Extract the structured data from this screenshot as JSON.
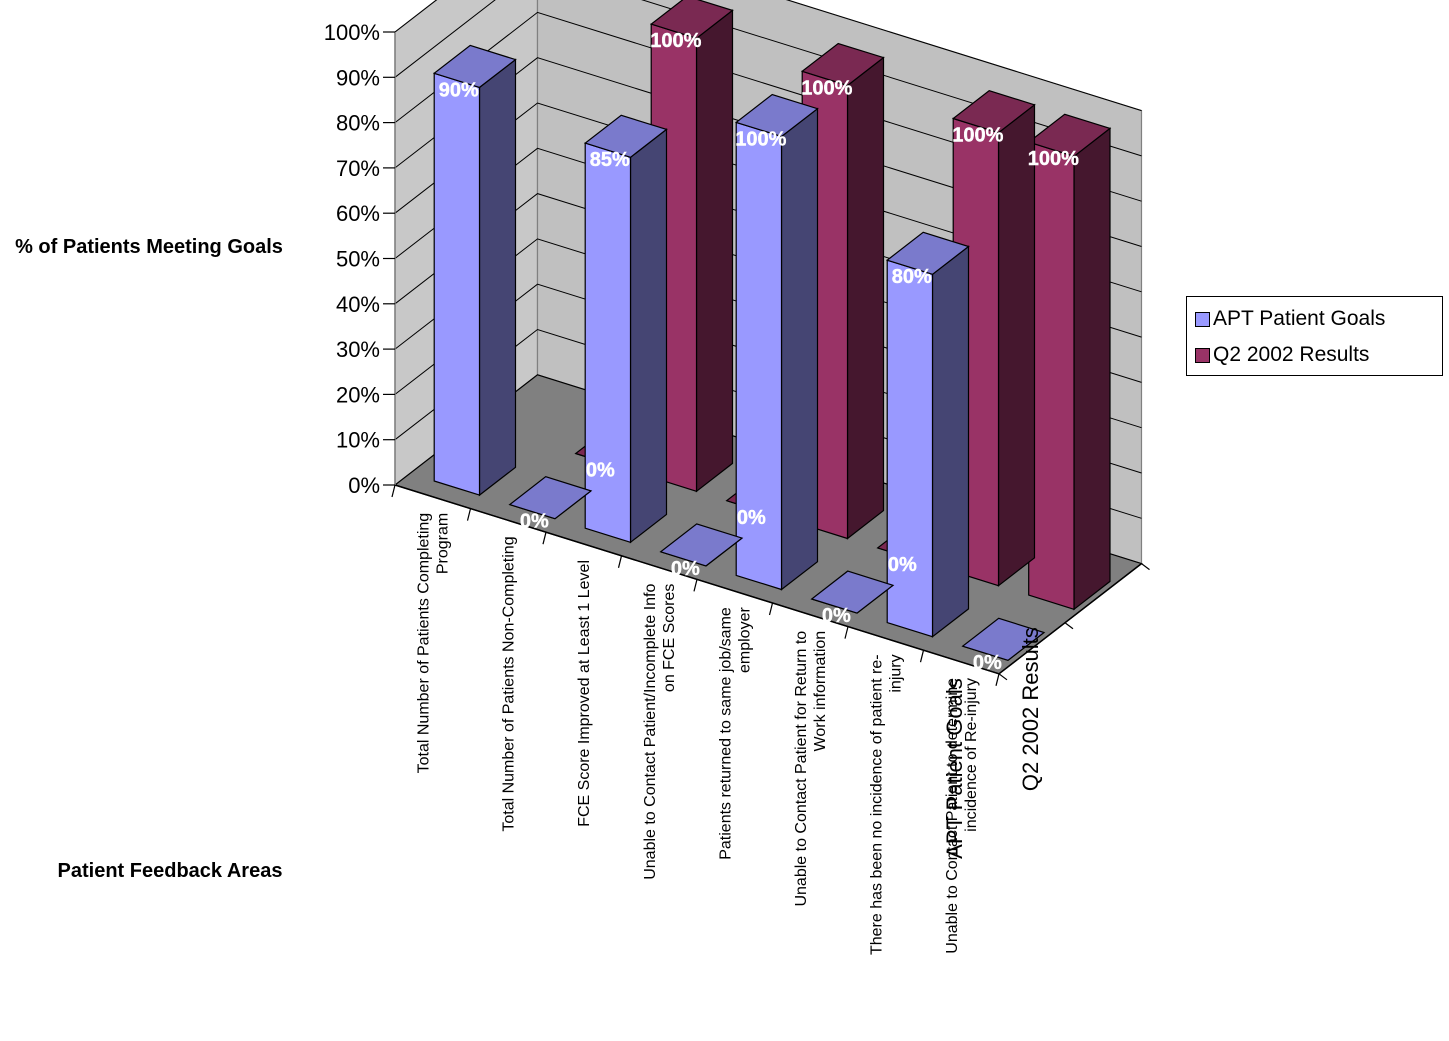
{
  "chart_data": {
    "type": "bar",
    "subtype": "3d-clustered-bar",
    "title": "",
    "ylabel": "% of Patients Meeting Goals",
    "xlabel": "Patient Feedback Areas",
    "ylim": [
      0,
      100
    ],
    "y_ticks": [
      "0%",
      "10%",
      "20%",
      "30%",
      "40%",
      "50%",
      "60%",
      "70%",
      "80%",
      "90%",
      "100%"
    ],
    "grid": true,
    "legend_position": "right",
    "categories": [
      [
        "Total Number of Patients Completing",
        "Program"
      ],
      [
        "Total Number of Patients Non-Completing"
      ],
      [
        "FCE Score Improved at Least 1 Level"
      ],
      [
        "Unable to Contact Patient/Incomplete Info",
        "on FCE Scores"
      ],
      [
        "Patients returned to same job/same",
        "employer"
      ],
      [
        "Unable to Contact Patient for Return to",
        "Work information"
      ],
      [
        "There has been no incidence of patient re-",
        "injury"
      ],
      [
        "Unable to Contact Patient to determine",
        "incidence of Re-injury"
      ]
    ],
    "series": [
      {
        "name": "APT Patient Goals",
        "color": "#9999ff",
        "values": [
          90,
          0,
          85,
          0,
          100,
          0,
          80,
          0
        ],
        "labels": [
          "90%",
          "0%",
          "85%",
          "0%",
          "100%",
          "0%",
          "80%",
          "0%"
        ]
      },
      {
        "name": "Q2 2002 Results",
        "color": "#993366",
        "values": [
          null,
          0,
          100,
          0,
          100,
          0,
          100,
          100
        ],
        "labels": [
          "",
          "0%",
          "100%",
          "0%",
          "100%",
          "0%",
          "100%",
          "100%"
        ]
      }
    ],
    "series_axis_labels": [
      "APT Patient Goals",
      "Q2 2002 Results"
    ]
  }
}
